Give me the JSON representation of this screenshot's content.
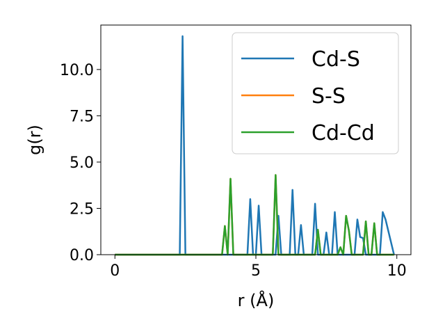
{
  "chart_data": {
    "type": "line",
    "xlabel": "r (Å)",
    "ylabel": "g(r)",
    "xlim": [
      -0.5,
      10.5
    ],
    "ylim": [
      0,
      12.4
    ],
    "xticks": [
      0,
      5,
      10
    ],
    "yticks": [
      0.0,
      2.5,
      5.0,
      7.5,
      10.0
    ],
    "xtick_labels": [
      "0",
      "5",
      "10"
    ],
    "ytick_labels": [
      "0.0",
      "2.5",
      "5.0",
      "7.5",
      "10.0"
    ],
    "grid": false,
    "legend_position": "top-right",
    "series": [
      {
        "name": "Cd-S",
        "color": "#1f77b4",
        "x": [
          0.0,
          2.3,
          2.4,
          2.5,
          4.7,
          4.8,
          4.9,
          5.0,
          5.1,
          5.2,
          5.7,
          5.8,
          5.9,
          6.2,
          6.3,
          6.4,
          6.5,
          6.6,
          6.7,
          7.0,
          7.1,
          7.2,
          7.4,
          7.5,
          7.6,
          7.7,
          7.8,
          7.9,
          8.5,
          8.6,
          8.7,
          8.8,
          8.9,
          9.4,
          9.5,
          9.6,
          9.9
        ],
        "y": [
          0.0,
          0.0,
          11.8,
          0.0,
          0.0,
          3.0,
          0.0,
          0.0,
          2.65,
          0.0,
          0.0,
          2.1,
          0.0,
          0.0,
          3.5,
          0.0,
          0.0,
          1.6,
          0.0,
          0.0,
          2.75,
          0.0,
          0.0,
          1.2,
          0.0,
          0.0,
          2.3,
          0.0,
          0.0,
          1.9,
          0.95,
          0.9,
          0.0,
          0.0,
          2.3,
          1.9,
          0.0
        ]
      },
      {
        "name": "S-S",
        "color": "#ff7f0e",
        "x": [
          0.0,
          3.8,
          3.9,
          4.0,
          4.1,
          4.2,
          5.6,
          5.7,
          5.8,
          7.1,
          7.2,
          7.3,
          7.9,
          8.0,
          8.1,
          8.2,
          8.3,
          8.4,
          8.8,
          8.9,
          9.0,
          9.1,
          9.2,
          9.3,
          9.9
        ],
        "y": [
          0.0,
          0.0,
          1.55,
          0.0,
          4.1,
          0.0,
          0.0,
          4.3,
          0.0,
          0.0,
          1.35,
          0.0,
          0.0,
          0.4,
          0.0,
          2.1,
          1.3,
          0.0,
          0.0,
          1.8,
          0.0,
          0.0,
          1.7,
          0.0,
          0.0
        ]
      },
      {
        "name": "Cd-Cd",
        "color": "#2ca02c",
        "x": [
          0.0,
          3.8,
          3.9,
          4.0,
          4.1,
          4.2,
          5.6,
          5.7,
          5.8,
          7.1,
          7.2,
          7.3,
          7.9,
          8.0,
          8.1,
          8.2,
          8.3,
          8.4,
          8.8,
          8.9,
          9.0,
          9.1,
          9.2,
          9.3,
          9.9
        ],
        "y": [
          0.0,
          0.0,
          1.55,
          0.0,
          4.1,
          0.0,
          0.0,
          4.3,
          0.0,
          0.0,
          1.35,
          0.0,
          0.0,
          0.4,
          0.0,
          2.1,
          1.3,
          0.0,
          0.0,
          1.8,
          0.0,
          0.0,
          1.7,
          0.0,
          0.0
        ]
      }
    ]
  }
}
